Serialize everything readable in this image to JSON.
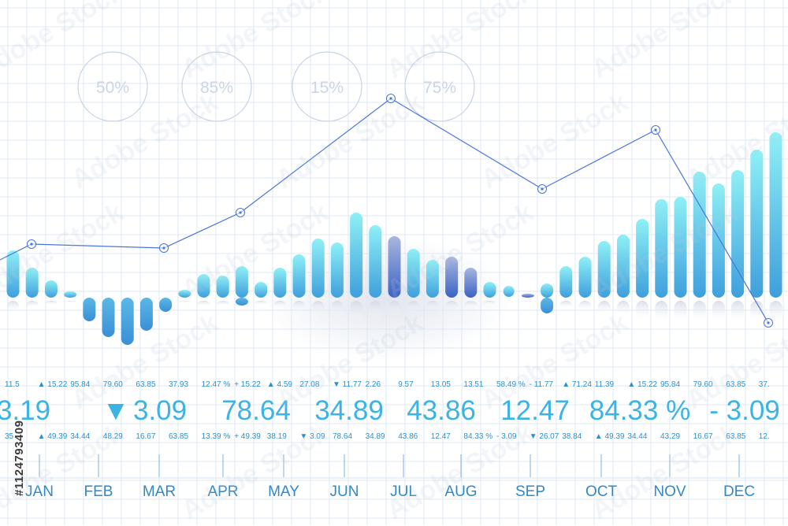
{
  "chart_data": {
    "type": "bar",
    "categories": [
      "JAN",
      "FEB",
      "MAR",
      "APR",
      "MAY",
      "JUN",
      "JUL",
      "AUG",
      "SEP",
      "OCT",
      "NOV",
      "DEC"
    ],
    "gauges": [
      "50%",
      "85%",
      "15%",
      "75%"
    ],
    "line_values": [
      100,
      120,
      115,
      160,
      305,
      190,
      265,
      20
    ],
    "bars_above": [
      60,
      38,
      22,
      8,
      0,
      0,
      0,
      0,
      0,
      10,
      30,
      28,
      40,
      20,
      38,
      55,
      75,
      70,
      108,
      92,
      78,
      62,
      48,
      52,
      38,
      20,
      0,
      5,
      18,
      40,
      52,
      72,
      80,
      100,
      125,
      128,
      160,
      145,
      162,
      188,
      210,
      176
    ],
    "bars_below": [
      0,
      0,
      0,
      0,
      30,
      50,
      60,
      42,
      18,
      0,
      0,
      0,
      10,
      0,
      0,
      0,
      0,
      0,
      0,
      0,
      0,
      0,
      0,
      0,
      0,
      0,
      0,
      0,
      20,
      0,
      0,
      0,
      0,
      0,
      0,
      0,
      0,
      0,
      0,
      0,
      0,
      0
    ],
    "ticker_top": [
      "11.5",
      "▲ 15.22",
      "95.84",
      "79.60",
      "63.85",
      "37.93",
      "12.47 %",
      "+ 15.22",
      "▲ 4.59",
      "27.08",
      "▼ 11.77",
      "2.26",
      "9.57",
      "13.05",
      "13.51",
      "58.49 %",
      "- 11.77",
      "▲ 71.24",
      "11.39",
      "▲ 15.22",
      "95.84",
      "79.60",
      "63.85",
      "37."
    ],
    "ticker_big": [
      "3.19",
      "▼",
      "3.09",
      "78.64",
      "34.89",
      "43.86",
      "12.47",
      "84.33 %",
      "- 3.09"
    ],
    "ticker_bottom": [
      "35",
      "▲ 49.39",
      "34.44",
      "48.29",
      "16.67",
      "63.85",
      "13.39 %",
      "+ 49.39",
      "38.19",
      "▼ 3.09",
      "78.64",
      "34.89",
      "43.86",
      "12.47",
      "84.33 %",
      "- 3.09",
      "▼ 26.07",
      "38.84",
      "▲ 49.39",
      "34.44",
      "43.29",
      "16.67",
      "63.85",
      "12."
    ],
    "watermark_text": "Adobe Stock",
    "id_text": "#1124793409",
    "colors": {
      "bar_top": "#8feef5",
      "bar_bottom": "#3f9fdc",
      "bar_dark_top": "#9aa9d8",
      "bar_dark_bottom": "#3a62c3",
      "line": "#4b74d8",
      "ticker": "#2f8fcc",
      "ticker_big": "#3bb3e5",
      "month": "#2f89c8",
      "grid": "#dde9f4"
    }
  }
}
